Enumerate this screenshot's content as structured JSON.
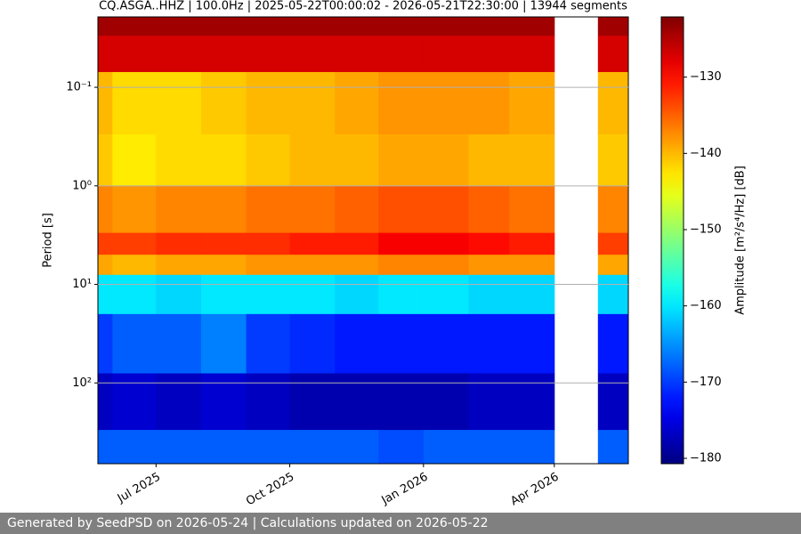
{
  "chart_data": {
    "type": "heatmap",
    "title": "CQ.ASGA..HHZ | 100.0Hz | 2025-05-22T00:00:02 - 2026-05-21T22:30:00 | 13944 segments",
    "ylabel": "Period [s]",
    "x": [
      "2025-05",
      "2025-06",
      "2025-07",
      "2025-08",
      "2025-09",
      "2025-10",
      "2025-11",
      "2025-12",
      "2026-01",
      "2026-02",
      "2026-03",
      "2026-04",
      "2026-05"
    ],
    "y_edges": [
      0.0193,
      0.03,
      0.07,
      0.3,
      1,
      3,
      5,
      8,
      20,
      80,
      300,
      660
    ],
    "values": [
      [
        -124,
        -124,
        -124,
        -124,
        -124,
        -124,
        -124,
        -124,
        -124,
        -124,
        -124,
        null,
        -124
      ],
      [
        -127,
        -127,
        -127,
        -127,
        -127,
        -127,
        -127,
        -127,
        -127,
        -127,
        -127,
        null,
        -127
      ],
      [
        -140,
        -142,
        -142,
        -141,
        -140,
        -140,
        -139,
        -138,
        -138,
        -138,
        -139,
        null,
        -140
      ],
      [
        -141,
        -143,
        -142,
        -142,
        -141,
        -140,
        -140,
        -139,
        -139,
        -140,
        -140,
        null,
        -141
      ],
      [
        -137,
        -138,
        -137,
        -137,
        -136,
        -136,
        -135,
        -134,
        -134,
        -135,
        -136,
        null,
        -137
      ],
      [
        -133,
        -133,
        -132,
        -132,
        -132,
        -131,
        -131,
        -129,
        -129,
        -130,
        -131,
        null,
        -133
      ],
      [
        -139,
        -140,
        -139,
        -139,
        -138,
        -138,
        -138,
        -137,
        -137,
        -138,
        -138,
        null,
        -139
      ],
      [
        -160,
        -160,
        -161,
        -160,
        -160,
        -160,
        -161,
        -160,
        -160,
        -161,
        -161,
        null,
        -161
      ],
      [
        -170,
        -168,
        -168,
        -166,
        -170,
        -171,
        -172,
        -172,
        -172,
        -172,
        -172,
        null,
        -172
      ],
      [
        -177,
        -176,
        -177,
        -176,
        -177,
        -178,
        -178,
        -178,
        -178,
        -177,
        -177,
        null,
        -177
      ],
      [
        -168,
        -168,
        -168,
        -168,
        -168,
        -168,
        -168,
        -169,
        -168,
        -168,
        -168,
        null,
        -168
      ]
    ],
    "xlim": [
      "2025-05-22T00:00:02",
      "2026-05-21T22:30:00"
    ],
    "xticks": [
      {
        "value": "2025-07",
        "label": "Jul 2025"
      },
      {
        "value": "2025-10",
        "label": "Oct 2025"
      },
      {
        "value": "2026-01",
        "label": "Jan 2026"
      },
      {
        "value": "2026-04",
        "label": "Apr 2026"
      }
    ],
    "ylim": [
      0.0193,
      660
    ],
    "yticks": [
      {
        "value": 0.1,
        "label": "10⁻¹"
      },
      {
        "value": 1,
        "label": "10⁰"
      },
      {
        "value": 10,
        "label": "10¹"
      },
      {
        "value": 100,
        "label": "10²"
      }
    ],
    "log_y": true,
    "y_inverted": true,
    "grid": true,
    "colorbar": {
      "label": "Amplitude [m²/s⁴/Hz] [dB]",
      "colormap": "jet",
      "clim": [
        -180.7,
        -122.1
      ],
      "ticks": [
        {
          "value": -130,
          "label": "−130"
        },
        {
          "value": -140,
          "label": "−140"
        },
        {
          "value": -150,
          "label": "−150"
        },
        {
          "value": -160,
          "label": "−160"
        },
        {
          "value": -170,
          "label": "−170"
        },
        {
          "value": -180,
          "label": "−180"
        }
      ]
    }
  },
  "footer": "Generated by SeedPSD on 2026-05-24 | Calculations updated on 2026-05-22"
}
